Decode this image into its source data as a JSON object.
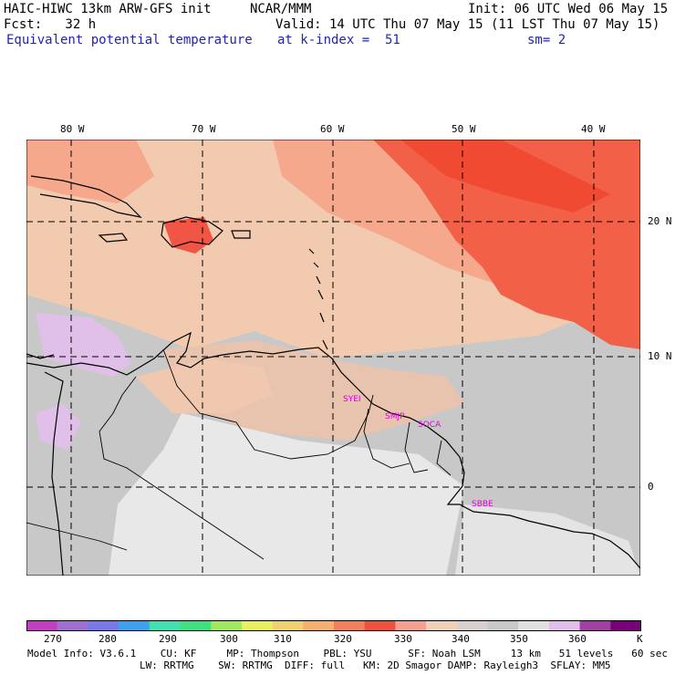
{
  "header": {
    "title": "HAIC-HIWC 13km ARW-GFS init",
    "org": "NCAR/MMM",
    "init": "Init: 06 UTC Wed 06 May 15",
    "fcst": "Fcst:   32 h",
    "valid": "Valid: 14 UTC Thu 07 May 15 (11 LST Thu 07 May 15)",
    "field": "Equivalent potential temperature",
    "level": "at k-index =  51",
    "smooth": "sm= 2"
  },
  "map": {
    "lon_labels": [
      "80 W",
      "70 W",
      "60 W",
      "50 W",
      "40 W"
    ],
    "lat_labels": [
      "20 N",
      "10 N",
      "0"
    ],
    "stations": [
      "SYEI",
      "SMJP",
      "SOCA",
      "SBBE"
    ]
  },
  "colorbar": {
    "levels": [
      "270",
      "280",
      "290",
      "300",
      "310",
      "320",
      "330",
      "340",
      "350",
      "360"
    ],
    "unit": "K",
    "colors": [
      "#c040c0",
      "#a070d0",
      "#7878e8",
      "#40a0f0",
      "#40e0b0",
      "#40e080",
      "#a0e860",
      "#e8f060",
      "#f0d070",
      "#f5b070",
      "#f08060",
      "#f05040",
      "#f5a090",
      "#f0d0b8",
      "#d8d0cc",
      "#c8c8c8",
      "#e0e0e0",
      "#e0c0e8",
      "#a040a0",
      "#780078"
    ]
  },
  "footer": {
    "line1": "Model Info: V3.6.1    CU: KF     MP: Thompson    PBL: YSU      SF: Noah LSM     13 km   51 levels   60 sec",
    "line2": "LW: RRTMG    SW: RRTMG  DIFF: full   KM: 2D Smagor DAMP: Rayleigh3  SFLAY: MM5"
  }
}
